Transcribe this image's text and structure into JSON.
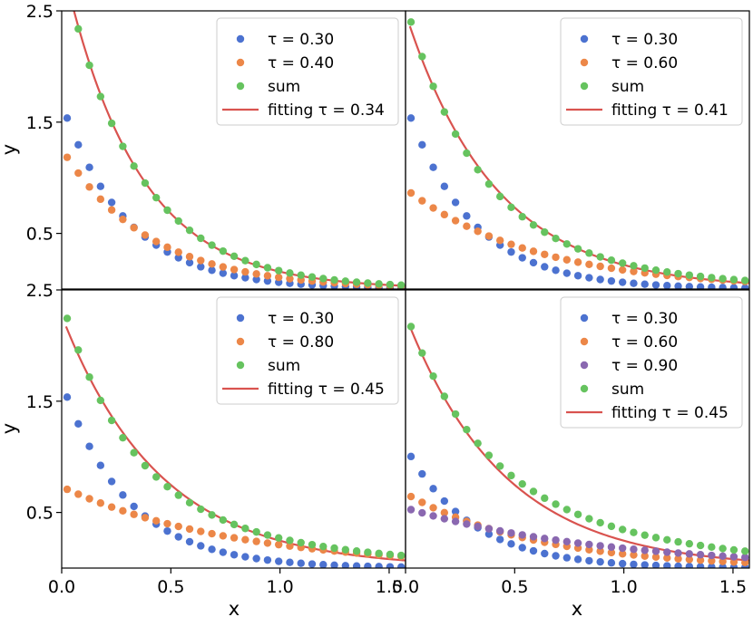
{
  "chart_data": {
    "type": "scatter",
    "layout": "2x2 grid, shared axes",
    "xlabel": "x",
    "ylabel": "y",
    "xlim": [
      0.0,
      1.575
    ],
    "ylim": [
      0.0,
      2.5
    ],
    "x_ticks": [
      "0.0",
      "0.5",
      "1.0",
      "1.5"
    ],
    "y_ticks": [
      "0.5",
      "1.5",
      "2.5"
    ],
    "legend_position": "upper right",
    "colors": {
      "series_1": "#4c72d0",
      "series_2": "#ec8748",
      "series_3": "#8a68b0",
      "sum": "#66c35f",
      "fit": "#d9534f"
    },
    "x": [
      0.025,
      0.076,
      0.127,
      0.178,
      0.229,
      0.28,
      0.331,
      0.382,
      0.433,
      0.484,
      0.535,
      0.586,
      0.637,
      0.688,
      0.739,
      0.79,
      0.841,
      0.892,
      0.943,
      0.994,
      1.045,
      1.096,
      1.147,
      1.198,
      1.249,
      1.3,
      1.351,
      1.402,
      1.453,
      1.504,
      1.555
    ],
    "panels": [
      {
        "series": [
          {
            "name": "τ = 0.30",
            "amplitude": 1.67,
            "tau": 0.3,
            "kind": "scatter",
            "color_key": "series_1"
          },
          {
            "name": "τ = 0.40",
            "amplitude": 1.26,
            "tau": 0.4,
            "kind": "scatter",
            "color_key": "series_2"
          },
          {
            "name": "sum",
            "kind": "sum",
            "color_key": "sum"
          },
          {
            "name": "fitting τ = 0.34",
            "amplitude": 2.95,
            "tau": 0.34,
            "kind": "line",
            "color_key": "fit"
          }
        ]
      },
      {
        "series": [
          {
            "name": "τ = 0.30",
            "amplitude": 1.67,
            "tau": 0.3,
            "kind": "scatter",
            "color_key": "series_1"
          },
          {
            "name": "τ = 0.60",
            "amplitude": 0.9,
            "tau": 0.6,
            "kind": "scatter",
            "color_key": "series_2"
          },
          {
            "name": "sum",
            "kind": "sum",
            "color_key": "sum"
          },
          {
            "name": "fitting τ = 0.41",
            "amplitude": 2.48,
            "tau": 0.41,
            "kind": "line",
            "color_key": "fit"
          }
        ]
      },
      {
        "series": [
          {
            "name": "τ = 0.30",
            "amplitude": 1.67,
            "tau": 0.3,
            "kind": "scatter",
            "color_key": "series_1"
          },
          {
            "name": "τ = 0.80",
            "amplitude": 0.73,
            "tau": 0.8,
            "kind": "scatter",
            "color_key": "series_2"
          },
          {
            "name": "sum",
            "kind": "sum",
            "color_key": "sum"
          },
          {
            "name": "fitting τ = 0.45",
            "amplitude": 2.27,
            "tau": 0.45,
            "kind": "line",
            "color_key": "fit"
          }
        ]
      },
      {
        "series": [
          {
            "name": "τ = 0.30",
            "amplitude": 1.09,
            "tau": 0.3,
            "kind": "scatter",
            "color_key": "series_1"
          },
          {
            "name": "τ = 0.60",
            "amplitude": 0.67,
            "tau": 0.6,
            "kind": "scatter",
            "color_key": "series_2"
          },
          {
            "name": "τ = 0.90",
            "amplitude": 0.54,
            "tau": 0.9,
            "kind": "scatter",
            "color_key": "series_3"
          },
          {
            "name": "sum",
            "kind": "sum",
            "color_key": "sum"
          },
          {
            "name": "fitting τ = 0.45",
            "amplitude": 2.27,
            "tau": 0.45,
            "kind": "line",
            "color_key": "fit"
          }
        ]
      }
    ]
  }
}
